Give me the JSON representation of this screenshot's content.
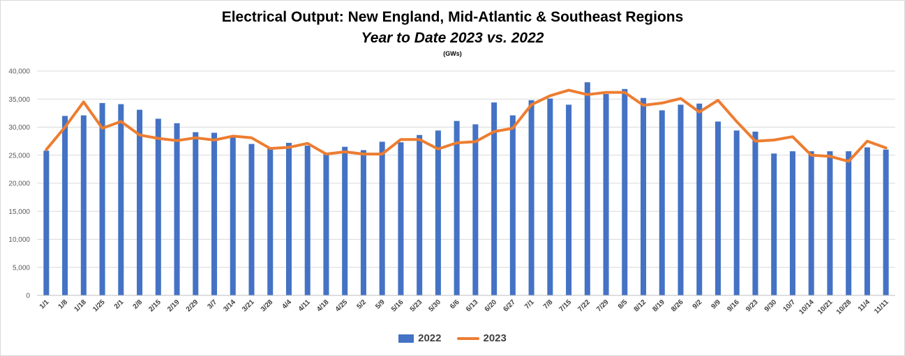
{
  "chart_data": {
    "type": "bar",
    "title": "Electrical Output:  New England, Mid-Atlantic & Southeast Regions",
    "subtitle": "Year to Date 2023 vs. 2022",
    "unit_note": "(GWs)",
    "ylim": [
      0,
      40000
    ],
    "yticks": [
      "0",
      "5,000",
      "10,000",
      "15,000",
      "20,000",
      "25,000",
      "30,000",
      "35,000",
      "40,000"
    ],
    "grid": true,
    "legend_position": "bottom",
    "categories": [
      "1/1",
      "1/8",
      "1/18",
      "1/25",
      "2/1",
      "2/8",
      "2/15",
      "2/19",
      "2/29",
      "3/7",
      "3/14",
      "3/21",
      "3/28",
      "4/4",
      "4/11",
      "4/18",
      "4/25",
      "5/2",
      "5/9",
      "5/16",
      "5/23",
      "5/30",
      "6/6",
      "6/13",
      "6/20",
      "6/27",
      "7/1",
      "7/8",
      "7/15",
      "7/22",
      "7/29",
      "8/5",
      "8/12",
      "8/19",
      "8/26",
      "9/2",
      "9/9",
      "9/16",
      "9/23",
      "9/30",
      "10/7",
      "10/14",
      "10/21",
      "10/28",
      "11/4",
      "11/11"
    ],
    "series": [
      {
        "name": "2022",
        "kind": "bar",
        "color": "#4472c4",
        "values": [
          25800,
          32000,
          32100,
          34300,
          34100,
          33100,
          31500,
          30700,
          29100,
          29000,
          28300,
          27000,
          26300,
          27200,
          26700,
          25200,
          26500,
          25900,
          27400,
          27300,
          28600,
          29400,
          31100,
          30500,
          34400,
          32100,
          34800,
          35100,
          34000,
          38000,
          35900,
          36800,
          35200,
          33000,
          34000,
          34200,
          31000,
          29400,
          29200,
          25300,
          25700,
          25700,
          25700,
          25700,
          26400,
          26000
        ]
      },
      {
        "name": "2023",
        "kind": "line",
        "color": "#ed7d31",
        "values": [
          26000,
          30000,
          34500,
          29800,
          31000,
          28600,
          28000,
          27600,
          28100,
          27700,
          28400,
          28100,
          26200,
          26400,
          27100,
          25200,
          25600,
          25200,
          25200,
          27800,
          27800,
          26100,
          27200,
          27400,
          29200,
          29800,
          34000,
          35600,
          36600,
          35800,
          36200,
          36200,
          33900,
          34300,
          35100,
          32700,
          34800,
          31000,
          27500,
          27700,
          28300,
          25000,
          24800,
          23900,
          27500,
          26300
        ]
      }
    ]
  }
}
